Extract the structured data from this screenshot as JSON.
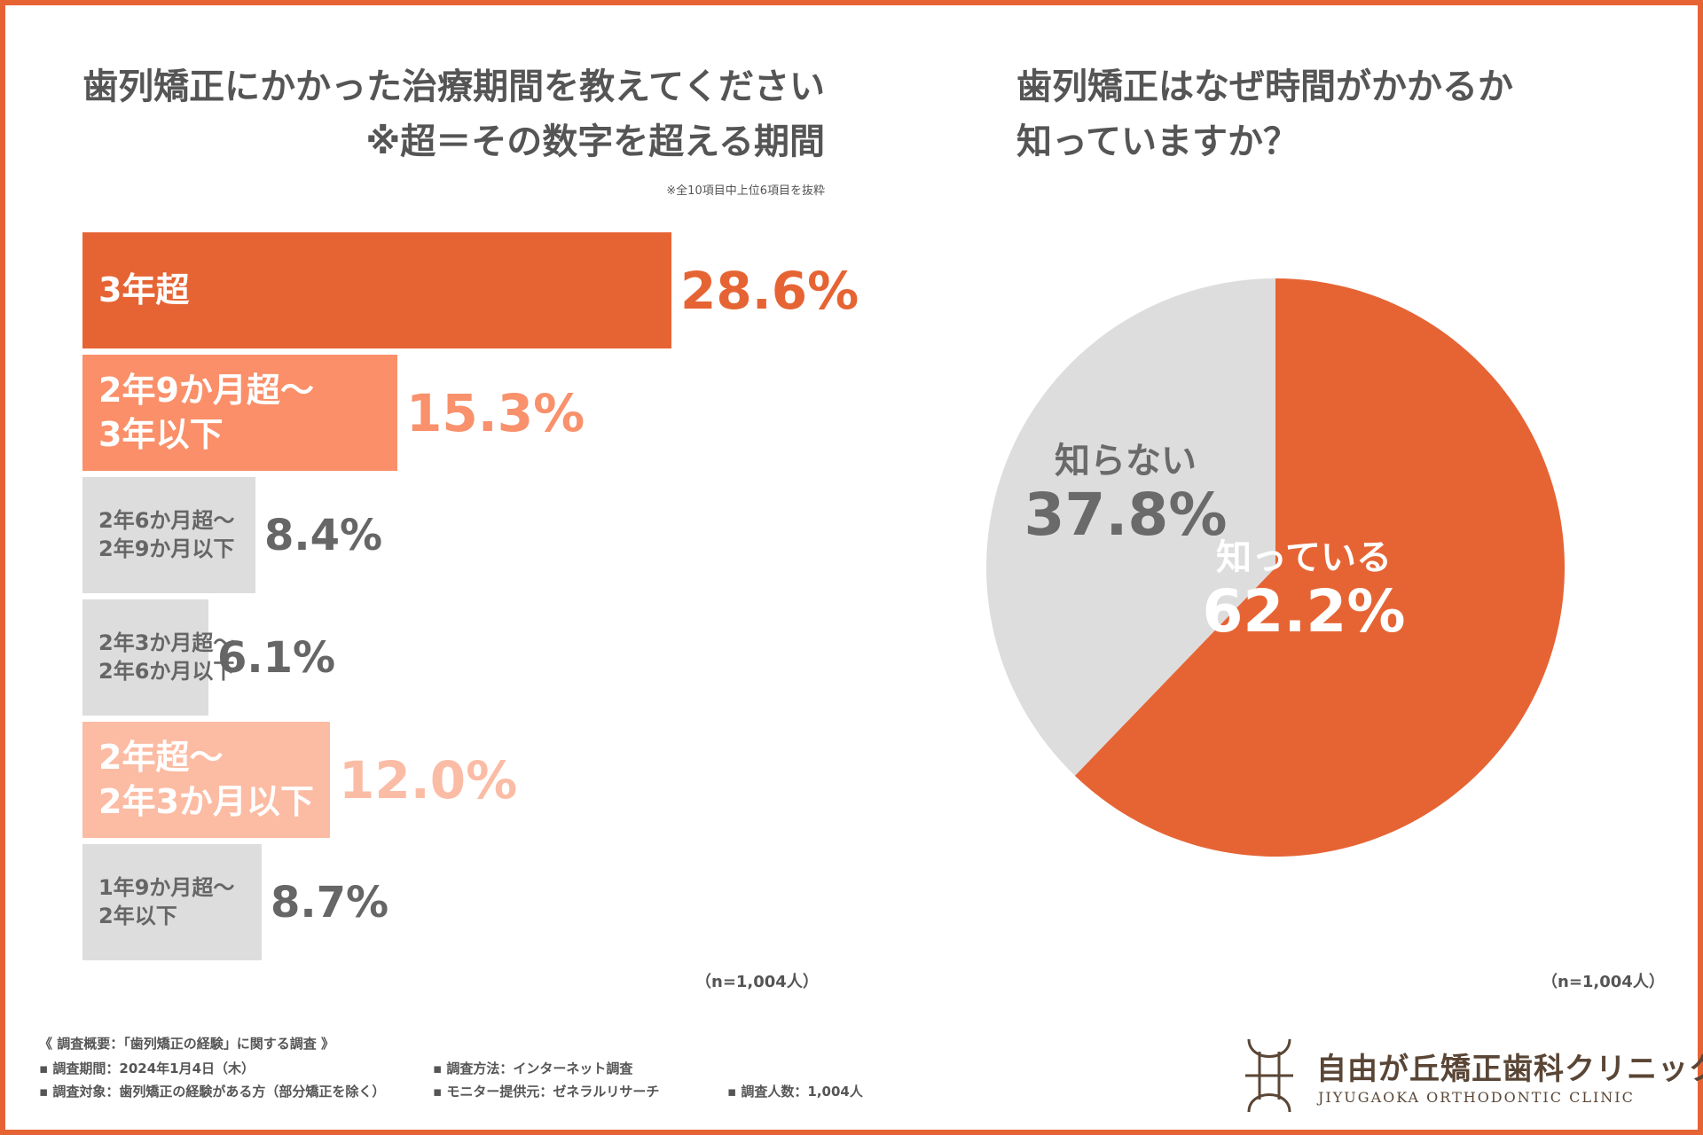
{
  "colors": {
    "accent": "#e66434",
    "bar_1": "#e66434",
    "bar_2": "#fa8f69",
    "bar_3": "#dddddd",
    "bar_4": "#dddddd",
    "bar_5": "#fcbba3",
    "bar_6": "#dddddd",
    "pie_known": "#e66434",
    "pie_unknown": "#dddddd",
    "text_gray": "#5a5a5a"
  },
  "left": {
    "title_line1": "歯列矯正にかかった治療期間を教えてください",
    "title_line2": "※超＝その数字を超える期間",
    "note": "※全10項目中上位6項目を抜粋",
    "n_label": "（n=1,004人）"
  },
  "right": {
    "title_line1": "歯列矯正はなぜ時間がかかるか",
    "title_line2": "知っていますか？",
    "n_label": "（n=1,004人）"
  },
  "survey": {
    "title": "《 調査概要：「歯列矯正の経験」に関する調査 》",
    "period": "▪ 調査期間：2024年1月4日（木）",
    "target": "▪ 調査対象：歯列矯正の経験がある方（部分矯正を除く）",
    "method": "▪ 調査方法：インターネット調査",
    "monitor": "▪ モニター提供元：ゼネラルリサーチ",
    "count": "▪ 調査人数：1,004人"
  },
  "logo": {
    "name": "自由が丘矯正歯科クリニック",
    "name_en": "JIYUGAOKA ORTHODONTIC CLINIC",
    "icon": "clinic-logo-icon"
  },
  "chart_data": [
    {
      "type": "bar",
      "orientation": "horizontal",
      "title": "歯列矯正にかかった治療期間を教えてください",
      "subtitle": "※超＝その数字を超える期間",
      "note": "※全10項目中上位6項目を抜粋",
      "categories": [
        [
          "3年超"
        ],
        [
          "2年9か月超～",
          "3年以下"
        ],
        [
          "2年6か月超～",
          "2年9か月以下"
        ],
        [
          "2年3か月超～",
          "2年6か月以下"
        ],
        [
          "2年超～",
          "2年3か月以下"
        ],
        [
          "1年9か月超～",
          "2年以下"
        ]
      ],
      "values": [
        28.6,
        15.3,
        8.4,
        6.1,
        12.0,
        8.7
      ],
      "value_labels": [
        "28.6%",
        "15.3%",
        "8.4%",
        "6.1%",
        "12.0%",
        "8.7%"
      ],
      "unit": "%",
      "xlim": [
        0,
        28.6
      ],
      "n": "n=1,004人"
    },
    {
      "type": "pie",
      "title": "歯列矯正はなぜ時間がかかるか知っていますか？",
      "slices": [
        {
          "label": "知っている",
          "value": 62.2,
          "value_label": "62.2%"
        },
        {
          "label": "知らない",
          "value": 37.8,
          "value_label": "37.8%"
        }
      ],
      "start": "12 o'clock",
      "direction": "clockwise",
      "n": "n=1,004人"
    }
  ]
}
